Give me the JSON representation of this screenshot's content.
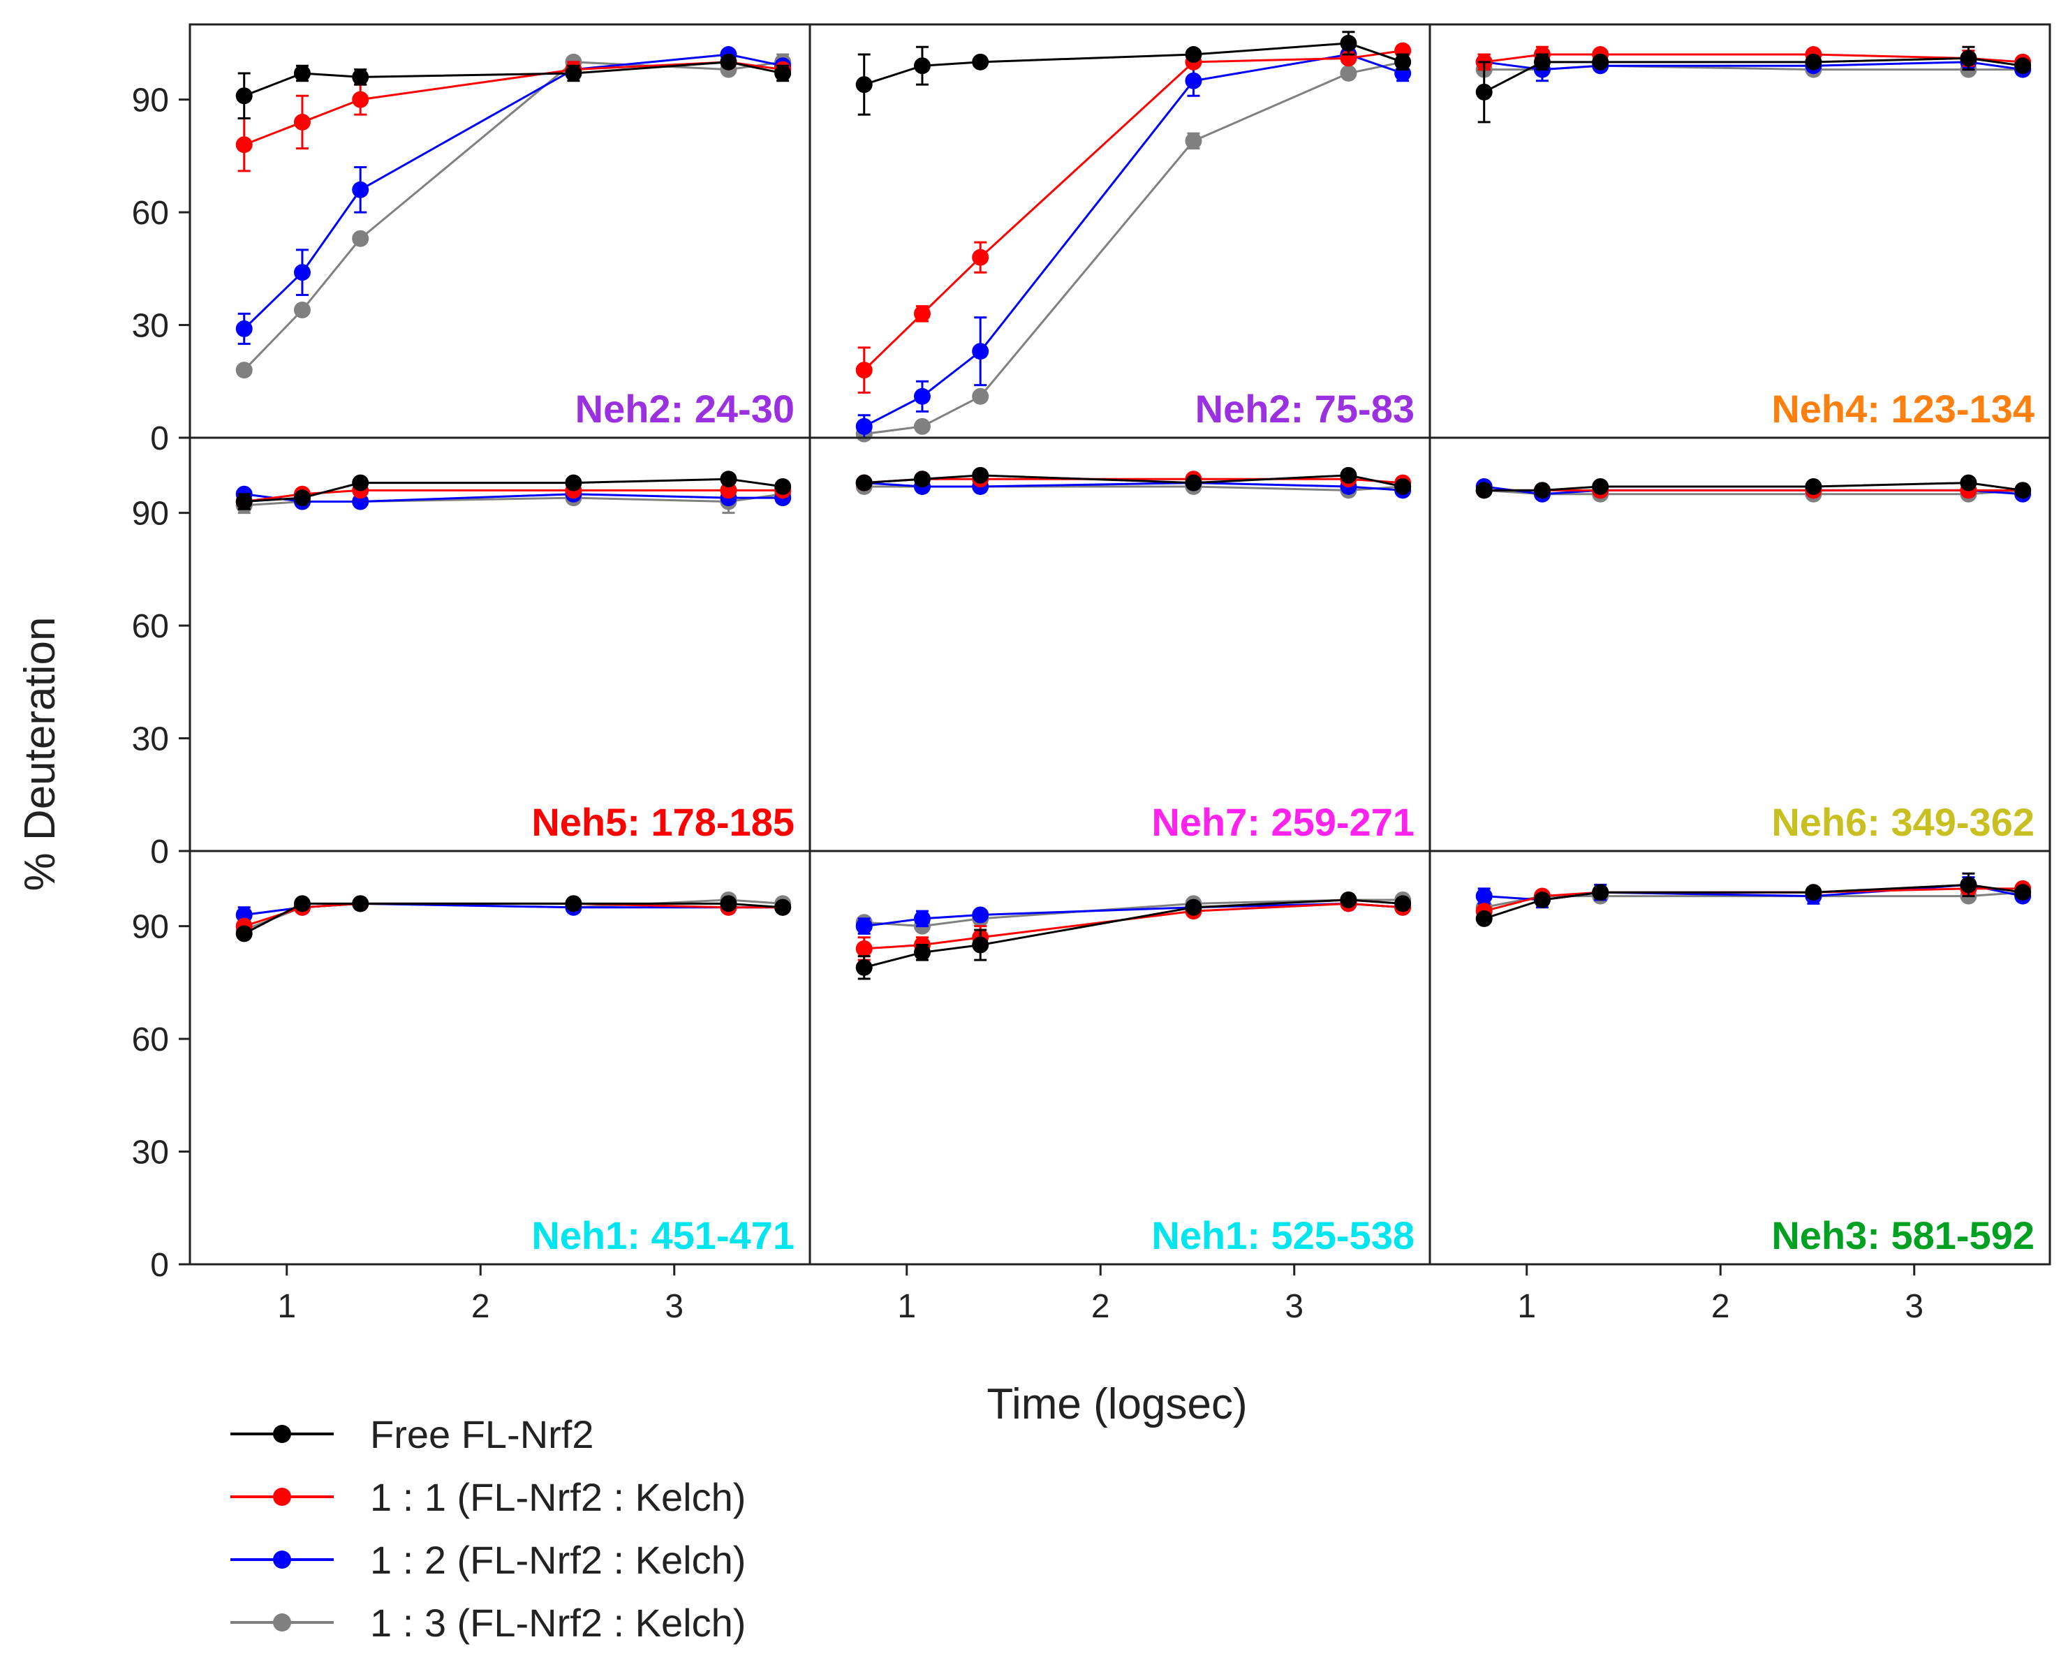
{
  "figure": {
    "ylabel": "% Deuteration",
    "xlabel": "Time (logsec)",
    "x_ticks": [
      "1",
      "2",
      "3"
    ],
    "y_ticks": [
      "0",
      "30",
      "60",
      "90"
    ]
  },
  "legend": [
    {
      "label": "Free FL-Nrf2",
      "color": "#000000"
    },
    {
      "label": "1 : 1 (FL-Nrf2 : Kelch)",
      "color": "#ff0000"
    },
    {
      "label": "1 : 2 (FL-Nrf2 : Kelch)",
      "color": "#0000ff"
    },
    {
      "label": "1 : 3 (FL-Nrf2 : Kelch)",
      "color": "#808080"
    }
  ],
  "chart_data": {
    "type": "line",
    "xlim": [
      0.5,
      3.7
    ],
    "ylim": [
      0,
      110
    ],
    "x": [
      0.78,
      1.08,
      1.38,
      2.48,
      3.28,
      3.56
    ],
    "panels": [
      {
        "label": "Neh2: 24-30",
        "color": "#9b30e0",
        "series": [
          {
            "name": "Free FL-Nrf2",
            "values": [
              91,
              97,
              96,
              97,
              100,
              97
            ],
            "errors": [
              6,
              2,
              2,
              2,
              1,
              2
            ]
          },
          {
            "name": "1 : 1 (FL-Nrf2 : Kelch)",
            "values": [
              78,
              84,
              90,
              98,
              100,
              98
            ],
            "errors": [
              7,
              7,
              4,
              2,
              1,
              1
            ]
          },
          {
            "name": "1 : 2 (FL-Nrf2 : Kelch)",
            "values": [
              29,
              44,
              66,
              98,
              102,
              99
            ],
            "errors": [
              4,
              6,
              6,
              2,
              1,
              1
            ]
          },
          {
            "name": "1 : 3 (FL-Nrf2 : Kelch)",
            "values": [
              18,
              34,
              53,
              100,
              98,
              100
            ],
            "errors": [
              1,
              1,
              1,
              1,
              1,
              2
            ]
          }
        ]
      },
      {
        "label": "Neh2: 75-83",
        "color": "#9b30e0",
        "series": [
          {
            "name": "Free FL-Nrf2",
            "values": [
              94,
              99,
              100,
              102,
              105,
              100
            ],
            "errors": [
              8,
              5,
              1,
              1,
              3,
              2
            ]
          },
          {
            "name": "1 : 1 (FL-Nrf2 : Kelch)",
            "values": [
              18,
              33,
              48,
              100,
              101,
              103
            ],
            "errors": [
              6,
              2,
              4,
              1,
              1,
              1
            ]
          },
          {
            "name": "1 : 2 (FL-Nrf2 : Kelch)",
            "values": [
              3,
              11,
              23,
              95,
              102,
              97
            ],
            "errors": [
              3,
              4,
              9,
              4,
              2,
              2
            ]
          },
          {
            "name": "1 : 3 (FL-Nrf2 : Kelch)",
            "values": [
              1,
              3,
              11,
              79,
              97,
              100
            ],
            "errors": [
              1,
              1,
              1,
              2,
              1,
              1
            ]
          }
        ]
      },
      {
        "label": "Neh4: 123-134",
        "color": "#ff7f0e",
        "series": [
          {
            "name": "Free FL-Nrf2",
            "values": [
              92,
              100,
              100,
              100,
              101,
              99
            ],
            "errors": [
              8,
              2,
              1,
              1,
              3,
              1
            ]
          },
          {
            "name": "1 : 1 (FL-Nrf2 : Kelch)",
            "values": [
              100,
              102,
              102,
              102,
              101,
              100
            ],
            "errors": [
              2,
              2,
              1,
              1,
              2,
              1
            ]
          },
          {
            "name": "1 : 2 (FL-Nrf2 : Kelch)",
            "values": [
              100,
              98,
              99,
              99,
              100,
              98
            ],
            "errors": [
              2,
              3,
              1,
              1,
              2,
              1
            ]
          },
          {
            "name": "1 : 3 (FL-Nrf2 : Kelch)",
            "values": [
              98,
              98,
              99,
              98,
              98,
              98
            ],
            "errors": [
              1,
              1,
              1,
              1,
              1,
              1
            ]
          }
        ]
      },
      {
        "label": "Neh5: 178-185",
        "color": "#ff0000",
        "series": [
          {
            "name": "Free FL-Nrf2",
            "values": [
              93,
              94,
              98,
              98,
              99,
              97
            ],
            "errors": [
              2,
              1,
              1,
              1,
              1,
              1
            ]
          },
          {
            "name": "1 : 1 (FL-Nrf2 : Kelch)",
            "values": [
              93,
              95,
              96,
              96,
              96,
              96
            ],
            "errors": [
              1,
              1,
              1,
              1,
              1,
              1
            ]
          },
          {
            "name": "1 : 2 (FL-Nrf2 : Kelch)",
            "values": [
              95,
              93,
              93,
              95,
              94,
              94
            ],
            "errors": [
              1,
              1,
              1,
              1,
              1,
              1
            ]
          },
          {
            "name": "1 : 3 (FL-Nrf2 : Kelch)",
            "values": [
              92,
              93,
              93,
              94,
              93,
              95
            ],
            "errors": [
              2,
              1,
              1,
              1,
              3,
              1
            ]
          }
        ]
      },
      {
        "label": "Neh7: 259-271",
        "color": "#ff22ee",
        "series": [
          {
            "name": "Free FL-Nrf2",
            "values": [
              98,
              99,
              100,
              98,
              100,
              97
            ],
            "errors": [
              1,
              1,
              1,
              1,
              1,
              1
            ]
          },
          {
            "name": "1 : 1 (FL-Nrf2 : Kelch)",
            "values": [
              98,
              99,
              99,
              99,
              99,
              98
            ],
            "errors": [
              1,
              1,
              1,
              1,
              1,
              1
            ]
          },
          {
            "name": "1 : 2 (FL-Nrf2 : Kelch)",
            "values": [
              98,
              97,
              97,
              98,
              97,
              96
            ],
            "errors": [
              1,
              1,
              1,
              1,
              1,
              1
            ]
          },
          {
            "name": "1 : 3 (FL-Nrf2 : Kelch)",
            "values": [
              97,
              97,
              97,
              97,
              96,
              97
            ],
            "errors": [
              1,
              1,
              1,
              1,
              1,
              1
            ]
          }
        ]
      },
      {
        "label": "Neh6: 349-362",
        "color": "#c8c020",
        "series": [
          {
            "name": "Free FL-Nrf2",
            "values": [
              96,
              96,
              97,
              97,
              98,
              96
            ],
            "errors": [
              1,
              1,
              1,
              1,
              1,
              1
            ]
          },
          {
            "name": "1 : 1 (FL-Nrf2 : Kelch)",
            "values": [
              96,
              96,
              96,
              96,
              96,
              96
            ],
            "errors": [
              1,
              1,
              1,
              1,
              1,
              1
            ]
          },
          {
            "name": "1 : 2 (FL-Nrf2 : Kelch)",
            "values": [
              97,
              95,
              96,
              96,
              96,
              95
            ],
            "errors": [
              1,
              1,
              1,
              1,
              1,
              1
            ]
          },
          {
            "name": "1 : 3 (FL-Nrf2 : Kelch)",
            "values": [
              96,
              95,
              95,
              95,
              95,
              96
            ],
            "errors": [
              1,
              1,
              1,
              1,
              1,
              1
            ]
          }
        ]
      },
      {
        "label": "Neh1: 451-471",
        "color": "#00e5ee",
        "series": [
          {
            "name": "Free FL-Nrf2",
            "values": [
              88,
              96,
              96,
              96,
              96,
              95
            ],
            "errors": [
              1,
              1,
              1,
              1,
              1,
              1
            ]
          },
          {
            "name": "1 : 1 (FL-Nrf2 : Kelch)",
            "values": [
              90,
              95,
              96,
              96,
              95,
              95
            ],
            "errors": [
              1,
              1,
              1,
              1,
              1,
              1
            ]
          },
          {
            "name": "1 : 2 (FL-Nrf2 : Kelch)",
            "values": [
              93,
              95,
              96,
              95,
              95,
              95
            ],
            "errors": [
              2,
              1,
              1,
              1,
              1,
              1
            ]
          },
          {
            "name": "1 : 3 (FL-Nrf2 : Kelch)",
            "values": [
              89,
              95,
              96,
              95,
              97,
              96
            ],
            "errors": [
              1,
              1,
              1,
              1,
              1,
              1
            ]
          }
        ]
      },
      {
        "label": "Neh1: 525-538",
        "color": "#00e5ee",
        "series": [
          {
            "name": "Free FL-Nrf2",
            "values": [
              79,
              83,
              85,
              95,
              97,
              96
            ],
            "errors": [
              3,
              2,
              4,
              1,
              1,
              1
            ]
          },
          {
            "name": "1 : 1 (FL-Nrf2 : Kelch)",
            "values": [
              84,
              85,
              87,
              94,
              96,
              95
            ],
            "errors": [
              3,
              2,
              3,
              1,
              1,
              1
            ]
          },
          {
            "name": "1 : 2 (FL-Nrf2 : Kelch)",
            "values": [
              90,
              92,
              93,
              95,
              96,
              95
            ],
            "errors": [
              2,
              2,
              1,
              1,
              1,
              1
            ]
          },
          {
            "name": "1 : 3 (FL-Nrf2 : Kelch)",
            "values": [
              91,
              90,
              92,
              96,
              97,
              97
            ],
            "errors": [
              1,
              1,
              1,
              1,
              1,
              1
            ]
          }
        ]
      },
      {
        "label": "Neh3: 581-592",
        "color": "#00a020",
        "series": [
          {
            "name": "Free FL-Nrf2",
            "values": [
              92,
              97,
              99,
              99,
              101,
              99
            ],
            "errors": [
              1,
              1,
              1,
              1,
              3,
              1
            ]
          },
          {
            "name": "1 : 1 (FL-Nrf2 : Kelch)",
            "values": [
              94,
              98,
              99,
              99,
              100,
              100
            ],
            "errors": [
              1,
              1,
              1,
              1,
              1,
              1
            ]
          },
          {
            "name": "1 : 2 (FL-Nrf2 : Kelch)",
            "values": [
              98,
              97,
              99,
              98,
              101,
              98
            ],
            "errors": [
              2,
              2,
              2,
              2,
              2,
              1
            ]
          },
          {
            "name": "1 : 3 (FL-Nrf2 : Kelch)",
            "values": [
              95,
              98,
              98,
              98,
              98,
              99
            ],
            "errors": [
              1,
              1,
              1,
              1,
              1,
              1
            ]
          }
        ]
      }
    ]
  }
}
